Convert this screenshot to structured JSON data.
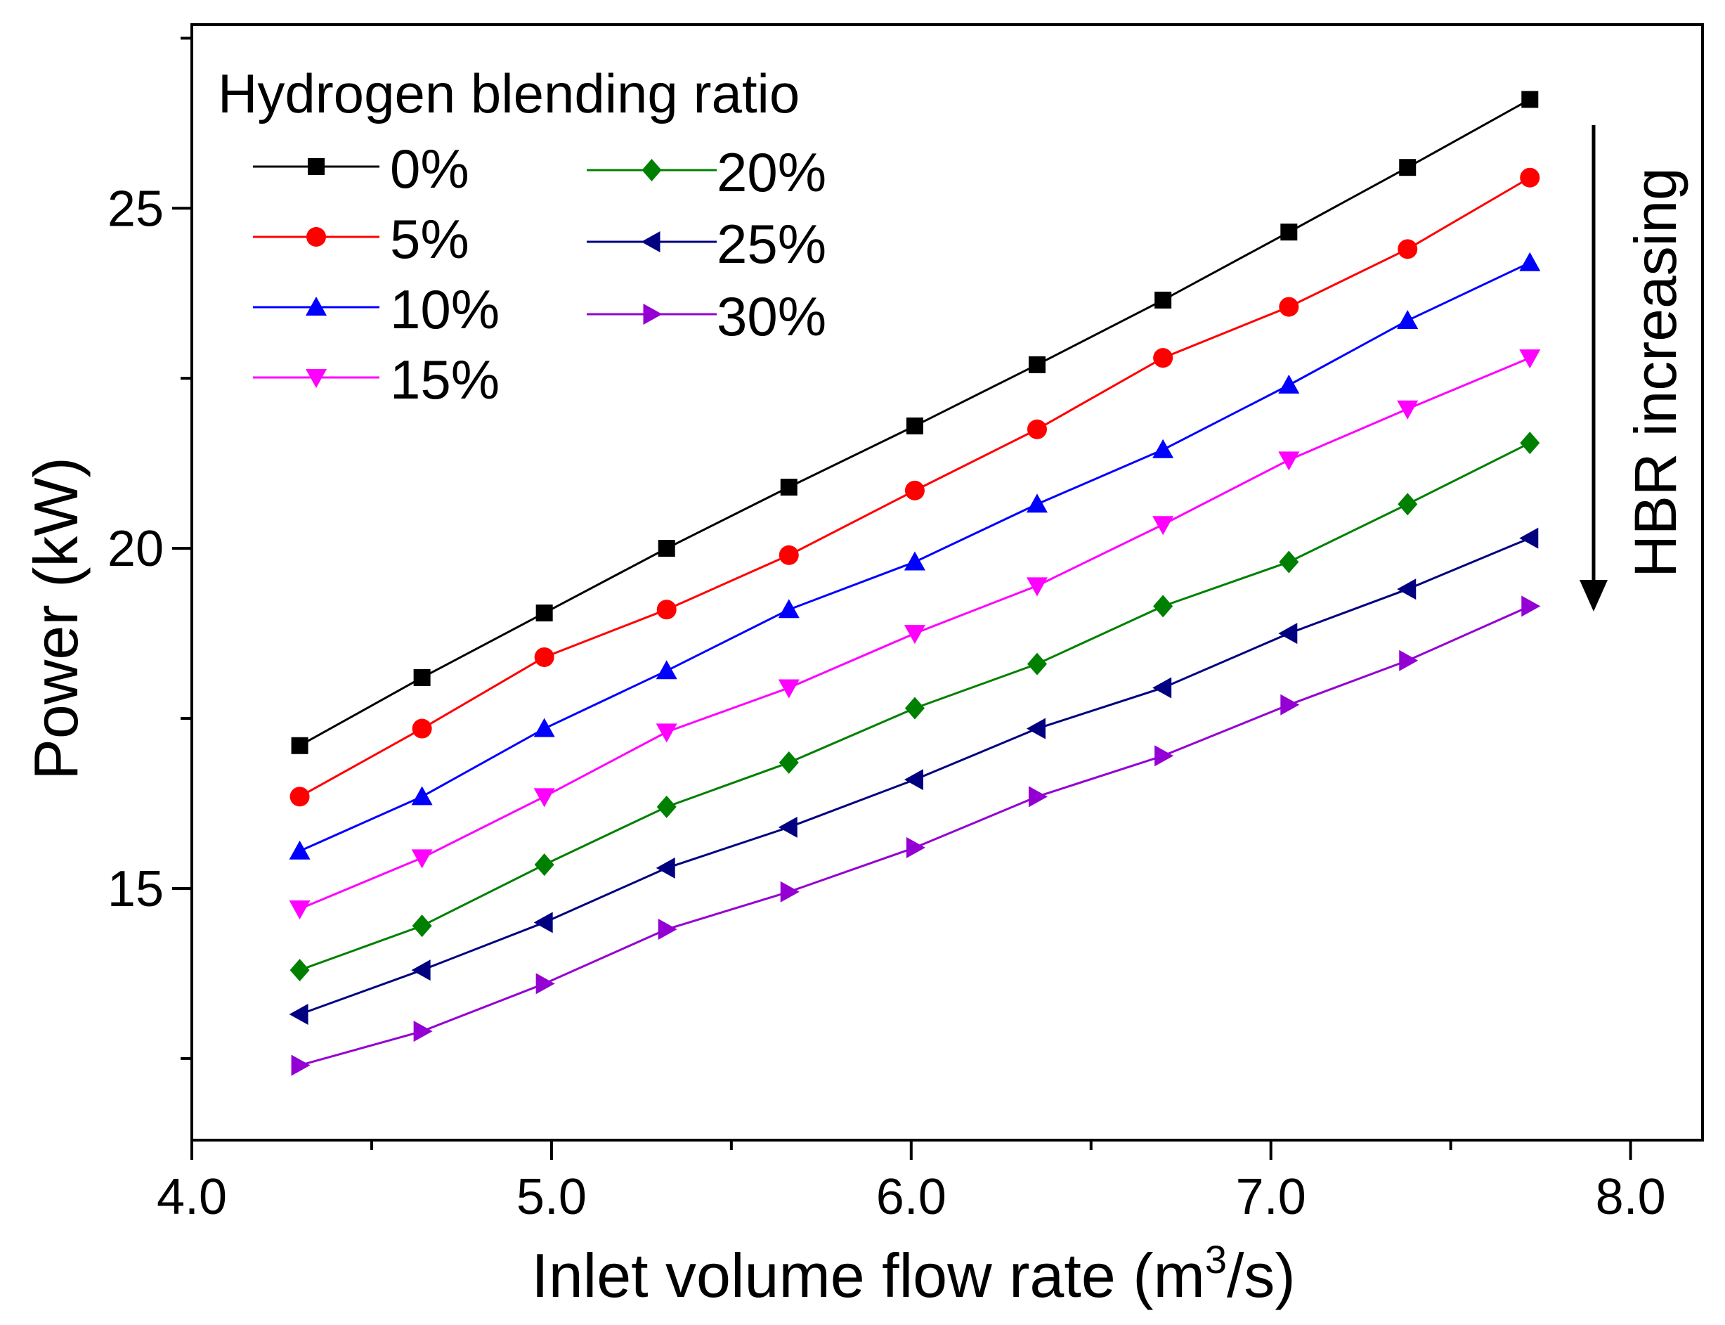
{
  "chart_data": {
    "type": "line",
    "title": "",
    "xlabel": "Inlet volume flow rate (m",
    "xlabel_superscript": "3",
    "xlabel_suffix": "/s)",
    "ylabel": "Power (kW)",
    "xlim": [
      4.0,
      8.2
    ],
    "ylim": [
      11.3,
      27.7
    ],
    "xticks": [
      4.0,
      5.0,
      6.0,
      7.0,
      8.0
    ],
    "xtick_labels": [
      "4.0",
      "5.0",
      "6.0",
      "7.0",
      "8.0"
    ],
    "yticks": [
      12.5,
      15,
      17.5,
      20,
      22.5,
      25,
      27.5
    ],
    "ytick_labels": [
      "",
      "15",
      "",
      "20",
      "",
      "25",
      ""
    ],
    "legend_title": "Hydrogen blending ratio",
    "legend_position": "top-left",
    "annotation": "HBR increasing",
    "x": [
      4.3,
      4.64,
      4.98,
      5.32,
      5.66,
      6.01,
      6.35,
      6.7,
      7.05,
      7.38,
      7.72
    ],
    "series": [
      {
        "name": "0%",
        "color": "#000000",
        "marker": "square",
        "values": [
          17.1,
          18.1,
          19.05,
          20.0,
          20.9,
          21.8,
          22.7,
          23.65,
          24.65,
          25.6,
          26.6
        ]
      },
      {
        "name": "5%",
        "color": "#ff0000",
        "marker": "circle",
        "values": [
          16.35,
          17.35,
          18.4,
          19.1,
          19.9,
          20.85,
          21.75,
          22.8,
          23.55,
          24.4,
          25.45
        ]
      },
      {
        "name": "10%",
        "color": "#0000ff",
        "marker": "triangle-up",
        "values": [
          15.55,
          16.35,
          17.35,
          18.2,
          19.1,
          19.8,
          20.65,
          21.45,
          22.4,
          23.35,
          24.2
        ]
      },
      {
        "name": "15%",
        "color": "#ff00ff",
        "marker": "triangle-down",
        "values": [
          14.7,
          15.45,
          16.35,
          17.3,
          17.95,
          18.75,
          19.45,
          20.35,
          21.3,
          22.05,
          22.8
        ]
      },
      {
        "name": "20%",
        "color": "#008000",
        "marker": "diamond",
        "values": [
          13.8,
          14.45,
          15.35,
          16.2,
          16.85,
          17.65,
          18.3,
          19.15,
          19.8,
          20.65,
          21.55
        ]
      },
      {
        "name": "25%",
        "color": "#000080",
        "marker": "triangle-left",
        "values": [
          13.15,
          13.8,
          14.5,
          15.3,
          15.9,
          16.6,
          17.35,
          17.95,
          18.75,
          19.4,
          20.15
        ]
      },
      {
        "name": "30%",
        "color": "#9400d3",
        "marker": "triangle-right",
        "values": [
          12.4,
          12.9,
          13.6,
          14.4,
          14.95,
          15.6,
          16.35,
          16.95,
          17.7,
          18.35,
          19.15
        ]
      }
    ]
  }
}
